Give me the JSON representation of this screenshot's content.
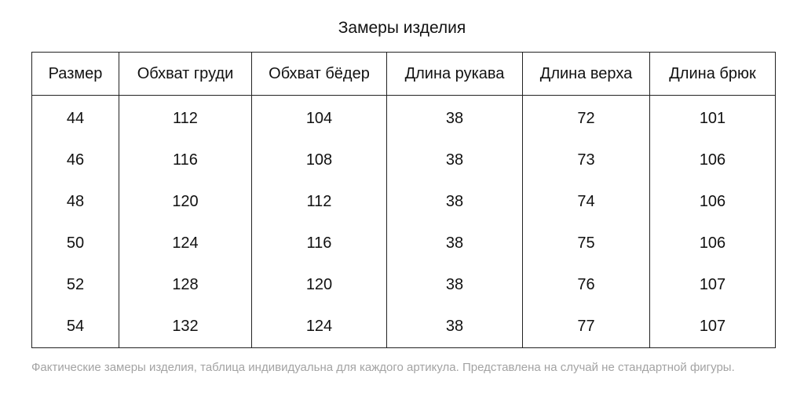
{
  "title": "Замеры изделия",
  "table": {
    "headers": [
      "Размер",
      "Обхват груди",
      "Обхват бёдер",
      "Длина рукава",
      "Длина верха",
      "Длина брюк"
    ],
    "rows": [
      [
        "44",
        "112",
        "104",
        "38",
        "72",
        "101"
      ],
      [
        "46",
        "116",
        "108",
        "38",
        "73",
        "106"
      ],
      [
        "48",
        "120",
        "112",
        "38",
        "74",
        "106"
      ],
      [
        "50",
        "124",
        "116",
        "38",
        "75",
        "106"
      ],
      [
        "52",
        "128",
        "120",
        "38",
        "76",
        "107"
      ],
      [
        "54",
        "132",
        "124",
        "38",
        "77",
        "107"
      ]
    ]
  },
  "note": "Фактические замеры изделия, таблица индивидуальна для каждого артикула. Представлена на случай не стандартной фигуры."
}
